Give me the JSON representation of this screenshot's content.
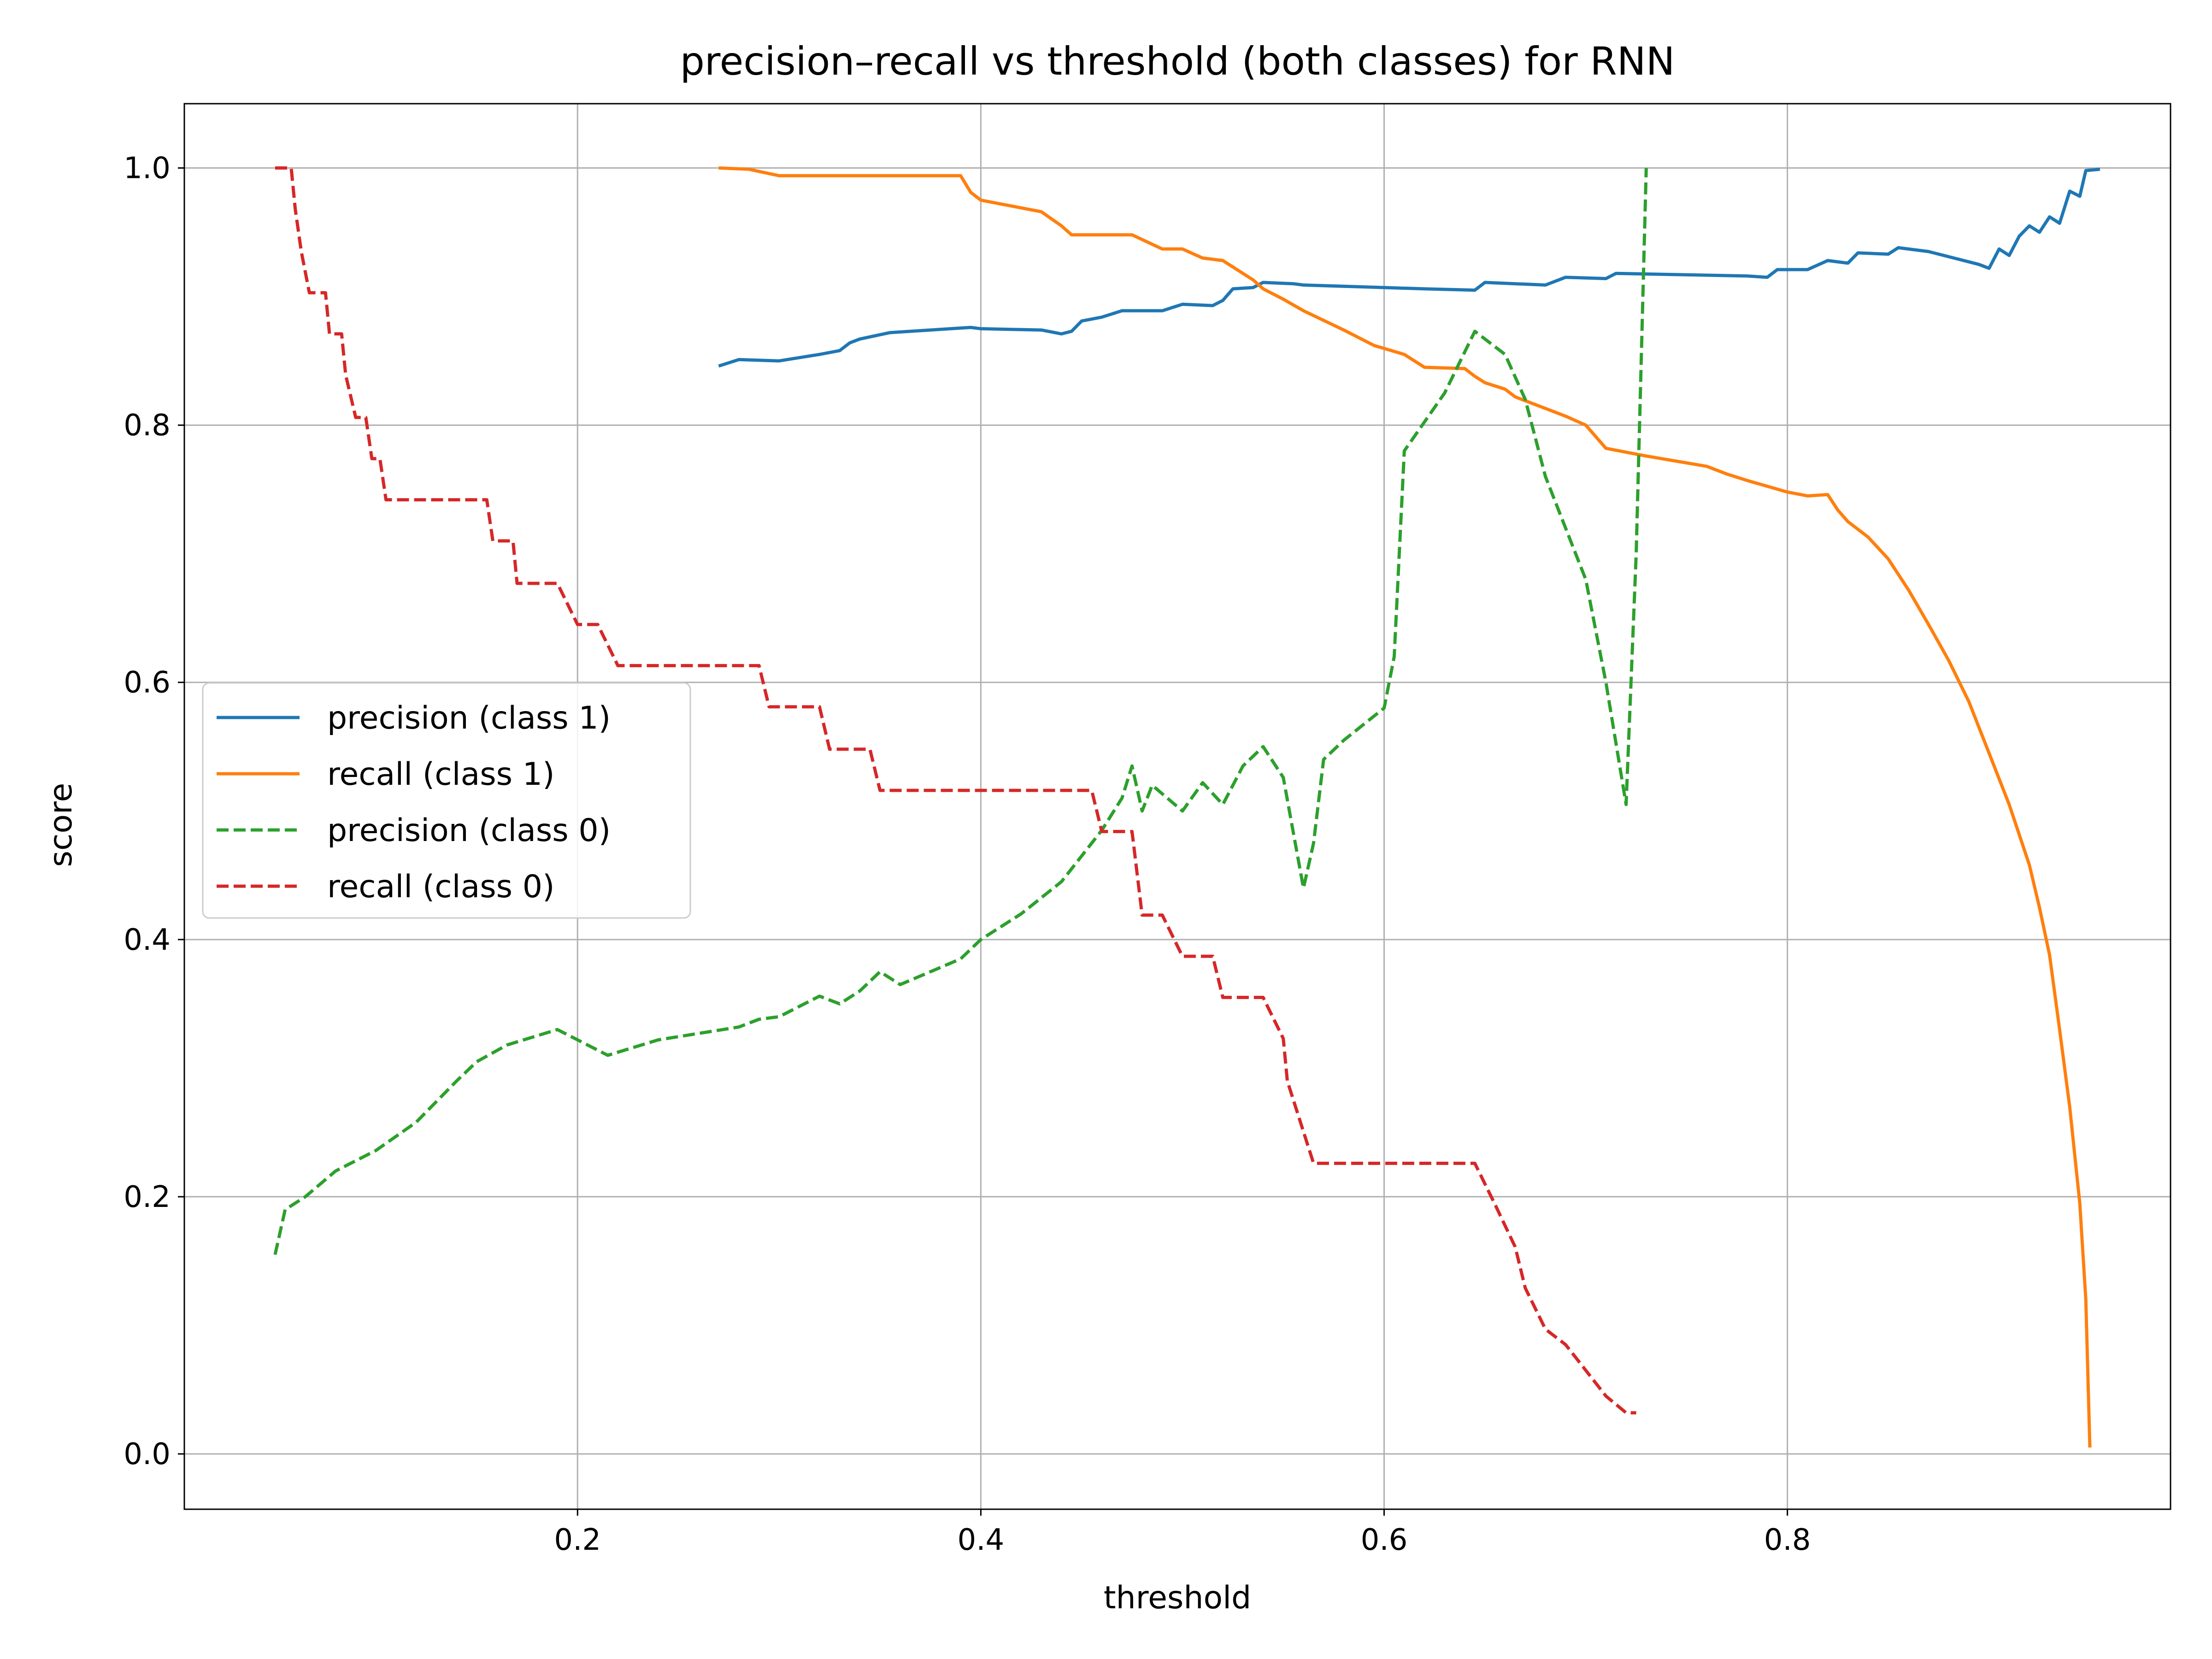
{
  "chart_data": {
    "type": "line",
    "title": "precision–recall vs threshold (both classes) for RNN",
    "xlabel": "threshold",
    "ylabel": "score",
    "xlim": [
      0.005,
      0.99
    ],
    "ylim": [
      -0.043,
      1.05
    ],
    "xticks": [
      0.2,
      0.4,
      0.6,
      0.8
    ],
    "yticks": [
      0.0,
      0.2,
      0.4,
      0.6,
      0.8,
      1.0
    ],
    "xtick_labels": [
      "0.2",
      "0.4",
      "0.6",
      "0.8"
    ],
    "ytick_labels": [
      "0.0",
      "0.2",
      "0.4",
      "0.6",
      "0.8",
      "1.0"
    ],
    "grid": true,
    "legend_position": "center-left",
    "series": [
      {
        "name": "precision (class 1)",
        "color": "#1f77b4",
        "dash": "solid",
        "points": [
          [
            0.27,
            0.846
          ],
          [
            0.28,
            0.851
          ],
          [
            0.3,
            0.85
          ],
          [
            0.32,
            0.855
          ],
          [
            0.33,
            0.858
          ],
          [
            0.335,
            0.864
          ],
          [
            0.34,
            0.867
          ],
          [
            0.355,
            0.872
          ],
          [
            0.375,
            0.874
          ],
          [
            0.395,
            0.876
          ],
          [
            0.4,
            0.875
          ],
          [
            0.43,
            0.874
          ],
          [
            0.44,
            0.871
          ],
          [
            0.445,
            0.873
          ],
          [
            0.45,
            0.881
          ],
          [
            0.46,
            0.884
          ],
          [
            0.47,
            0.889
          ],
          [
            0.49,
            0.889
          ],
          [
            0.5,
            0.894
          ],
          [
            0.515,
            0.893
          ],
          [
            0.52,
            0.897
          ],
          [
            0.525,
            0.906
          ],
          [
            0.535,
            0.907
          ],
          [
            0.54,
            0.911
          ],
          [
            0.555,
            0.91
          ],
          [
            0.56,
            0.909
          ],
          [
            0.6,
            0.907
          ],
          [
            0.62,
            0.906
          ],
          [
            0.645,
            0.905
          ],
          [
            0.65,
            0.911
          ],
          [
            0.68,
            0.909
          ],
          [
            0.69,
            0.915
          ],
          [
            0.71,
            0.914
          ],
          [
            0.715,
            0.918
          ],
          [
            0.78,
            0.916
          ],
          [
            0.79,
            0.915
          ],
          [
            0.795,
            0.921
          ],
          [
            0.81,
            0.921
          ],
          [
            0.82,
            0.928
          ],
          [
            0.83,
            0.926
          ],
          [
            0.835,
            0.934
          ],
          [
            0.85,
            0.933
          ],
          [
            0.855,
            0.938
          ],
          [
            0.87,
            0.935
          ],
          [
            0.885,
            0.929
          ],
          [
            0.895,
            0.925
          ],
          [
            0.9,
            0.922
          ],
          [
            0.905,
            0.937
          ],
          [
            0.91,
            0.932
          ],
          [
            0.915,
            0.947
          ],
          [
            0.92,
            0.955
          ],
          [
            0.925,
            0.95
          ],
          [
            0.93,
            0.962
          ],
          [
            0.935,
            0.957
          ],
          [
            0.94,
            0.982
          ],
          [
            0.945,
            0.978
          ],
          [
            0.948,
            0.998
          ],
          [
            0.955,
            0.999
          ]
        ]
      },
      {
        "name": "recall (class 1)",
        "color": "#ff7f0e",
        "dash": "solid",
        "points": [
          [
            0.27,
            1.0
          ],
          [
            0.285,
            0.999
          ],
          [
            0.3,
            0.994
          ],
          [
            0.39,
            0.994
          ],
          [
            0.395,
            0.981
          ],
          [
            0.4,
            0.975
          ],
          [
            0.43,
            0.966
          ],
          [
            0.44,
            0.955
          ],
          [
            0.445,
            0.948
          ],
          [
            0.475,
            0.948
          ],
          [
            0.49,
            0.937
          ],
          [
            0.5,
            0.937
          ],
          [
            0.51,
            0.93
          ],
          [
            0.52,
            0.928
          ],
          [
            0.535,
            0.913
          ],
          [
            0.54,
            0.906
          ],
          [
            0.55,
            0.898
          ],
          [
            0.56,
            0.889
          ],
          [
            0.58,
            0.874
          ],
          [
            0.595,
            0.862
          ],
          [
            0.61,
            0.855
          ],
          [
            0.62,
            0.845
          ],
          [
            0.64,
            0.844
          ],
          [
            0.645,
            0.838
          ],
          [
            0.65,
            0.833
          ],
          [
            0.66,
            0.828
          ],
          [
            0.665,
            0.822
          ],
          [
            0.68,
            0.813
          ],
          [
            0.69,
            0.807
          ],
          [
            0.7,
            0.8
          ],
          [
            0.71,
            0.782
          ],
          [
            0.73,
            0.776
          ],
          [
            0.76,
            0.768
          ],
          [
            0.77,
            0.762
          ],
          [
            0.78,
            0.757
          ],
          [
            0.8,
            0.748
          ],
          [
            0.81,
            0.745
          ],
          [
            0.82,
            0.746
          ],
          [
            0.825,
            0.734
          ],
          [
            0.83,
            0.725
          ],
          [
            0.84,
            0.713
          ],
          [
            0.85,
            0.696
          ],
          [
            0.86,
            0.672
          ],
          [
            0.87,
            0.645
          ],
          [
            0.88,
            0.617
          ],
          [
            0.89,
            0.585
          ],
          [
            0.9,
            0.545
          ],
          [
            0.91,
            0.505
          ],
          [
            0.92,
            0.458
          ],
          [
            0.925,
            0.425
          ],
          [
            0.93,
            0.388
          ],
          [
            0.935,
            0.33
          ],
          [
            0.94,
            0.27
          ],
          [
            0.945,
            0.195
          ],
          [
            0.948,
            0.12
          ],
          [
            0.95,
            0.005
          ]
        ]
      },
      {
        "name": "precision (class 0)",
        "color": "#2ca02c",
        "dash": "dashed",
        "points": [
          [
            0.05,
            0.155
          ],
          [
            0.055,
            0.19
          ],
          [
            0.065,
            0.2
          ],
          [
            0.08,
            0.22
          ],
          [
            0.1,
            0.236
          ],
          [
            0.12,
            0.258
          ],
          [
            0.14,
            0.29
          ],
          [
            0.15,
            0.305
          ],
          [
            0.165,
            0.318
          ],
          [
            0.19,
            0.33
          ],
          [
            0.215,
            0.31
          ],
          [
            0.24,
            0.322
          ],
          [
            0.28,
            0.332
          ],
          [
            0.29,
            0.338
          ],
          [
            0.3,
            0.34
          ],
          [
            0.32,
            0.356
          ],
          [
            0.33,
            0.35
          ],
          [
            0.34,
            0.36
          ],
          [
            0.35,
            0.375
          ],
          [
            0.36,
            0.365
          ],
          [
            0.39,
            0.385
          ],
          [
            0.4,
            0.4
          ],
          [
            0.42,
            0.42
          ],
          [
            0.44,
            0.445
          ],
          [
            0.45,
            0.465
          ],
          [
            0.46,
            0.485
          ],
          [
            0.47,
            0.51
          ],
          [
            0.475,
            0.535
          ],
          [
            0.48,
            0.5
          ],
          [
            0.485,
            0.52
          ],
          [
            0.5,
            0.5
          ],
          [
            0.51,
            0.522
          ],
          [
            0.52,
            0.505
          ],
          [
            0.53,
            0.535
          ],
          [
            0.54,
            0.55
          ],
          [
            0.55,
            0.526
          ],
          [
            0.56,
            0.44
          ],
          [
            0.565,
            0.475
          ],
          [
            0.57,
            0.54
          ],
          [
            0.58,
            0.555
          ],
          [
            0.6,
            0.58
          ],
          [
            0.605,
            0.62
          ],
          [
            0.61,
            0.78
          ],
          [
            0.63,
            0.825
          ],
          [
            0.645,
            0.873
          ],
          [
            0.66,
            0.855
          ],
          [
            0.67,
            0.82
          ],
          [
            0.68,
            0.76
          ],
          [
            0.69,
            0.72
          ],
          [
            0.7,
            0.68
          ],
          [
            0.71,
            0.6
          ],
          [
            0.72,
            0.505
          ],
          [
            0.725,
            0.7
          ],
          [
            0.73,
            1.0
          ]
        ]
      },
      {
        "name": "recall (class 0)",
        "color": "#d62728",
        "dash": "dashed",
        "points": [
          [
            0.05,
            1.0
          ],
          [
            0.058,
            1.0
          ],
          [
            0.06,
            0.968
          ],
          [
            0.063,
            0.935
          ],
          [
            0.067,
            0.903
          ],
          [
            0.075,
            0.903
          ],
          [
            0.077,
            0.871
          ],
          [
            0.083,
            0.871
          ],
          [
            0.085,
            0.839
          ],
          [
            0.09,
            0.806
          ],
          [
            0.095,
            0.806
          ],
          [
            0.098,
            0.774
          ],
          [
            0.102,
            0.774
          ],
          [
            0.105,
            0.742
          ],
          [
            0.155,
            0.742
          ],
          [
            0.158,
            0.71
          ],
          [
            0.168,
            0.71
          ],
          [
            0.17,
            0.677
          ],
          [
            0.19,
            0.677
          ],
          [
            0.195,
            0.661
          ],
          [
            0.2,
            0.645
          ],
          [
            0.21,
            0.645
          ],
          [
            0.22,
            0.613
          ],
          [
            0.29,
            0.613
          ],
          [
            0.295,
            0.581
          ],
          [
            0.32,
            0.581
          ],
          [
            0.325,
            0.548
          ],
          [
            0.345,
            0.548
          ],
          [
            0.35,
            0.516
          ],
          [
            0.455,
            0.516
          ],
          [
            0.46,
            0.484
          ],
          [
            0.475,
            0.484
          ],
          [
            0.48,
            0.419
          ],
          [
            0.49,
            0.419
          ],
          [
            0.5,
            0.387
          ],
          [
            0.515,
            0.387
          ],
          [
            0.52,
            0.355
          ],
          [
            0.54,
            0.355
          ],
          [
            0.55,
            0.323
          ],
          [
            0.552,
            0.29
          ],
          [
            0.565,
            0.226
          ],
          [
            0.64,
            0.226
          ],
          [
            0.645,
            0.226
          ],
          [
            0.655,
            0.194
          ],
          [
            0.665,
            0.161
          ],
          [
            0.67,
            0.129
          ],
          [
            0.68,
            0.097
          ],
          [
            0.69,
            0.085
          ],
          [
            0.7,
            0.065
          ],
          [
            0.71,
            0.045
          ],
          [
            0.72,
            0.032
          ],
          [
            0.725,
            0.032
          ]
        ]
      }
    ]
  }
}
